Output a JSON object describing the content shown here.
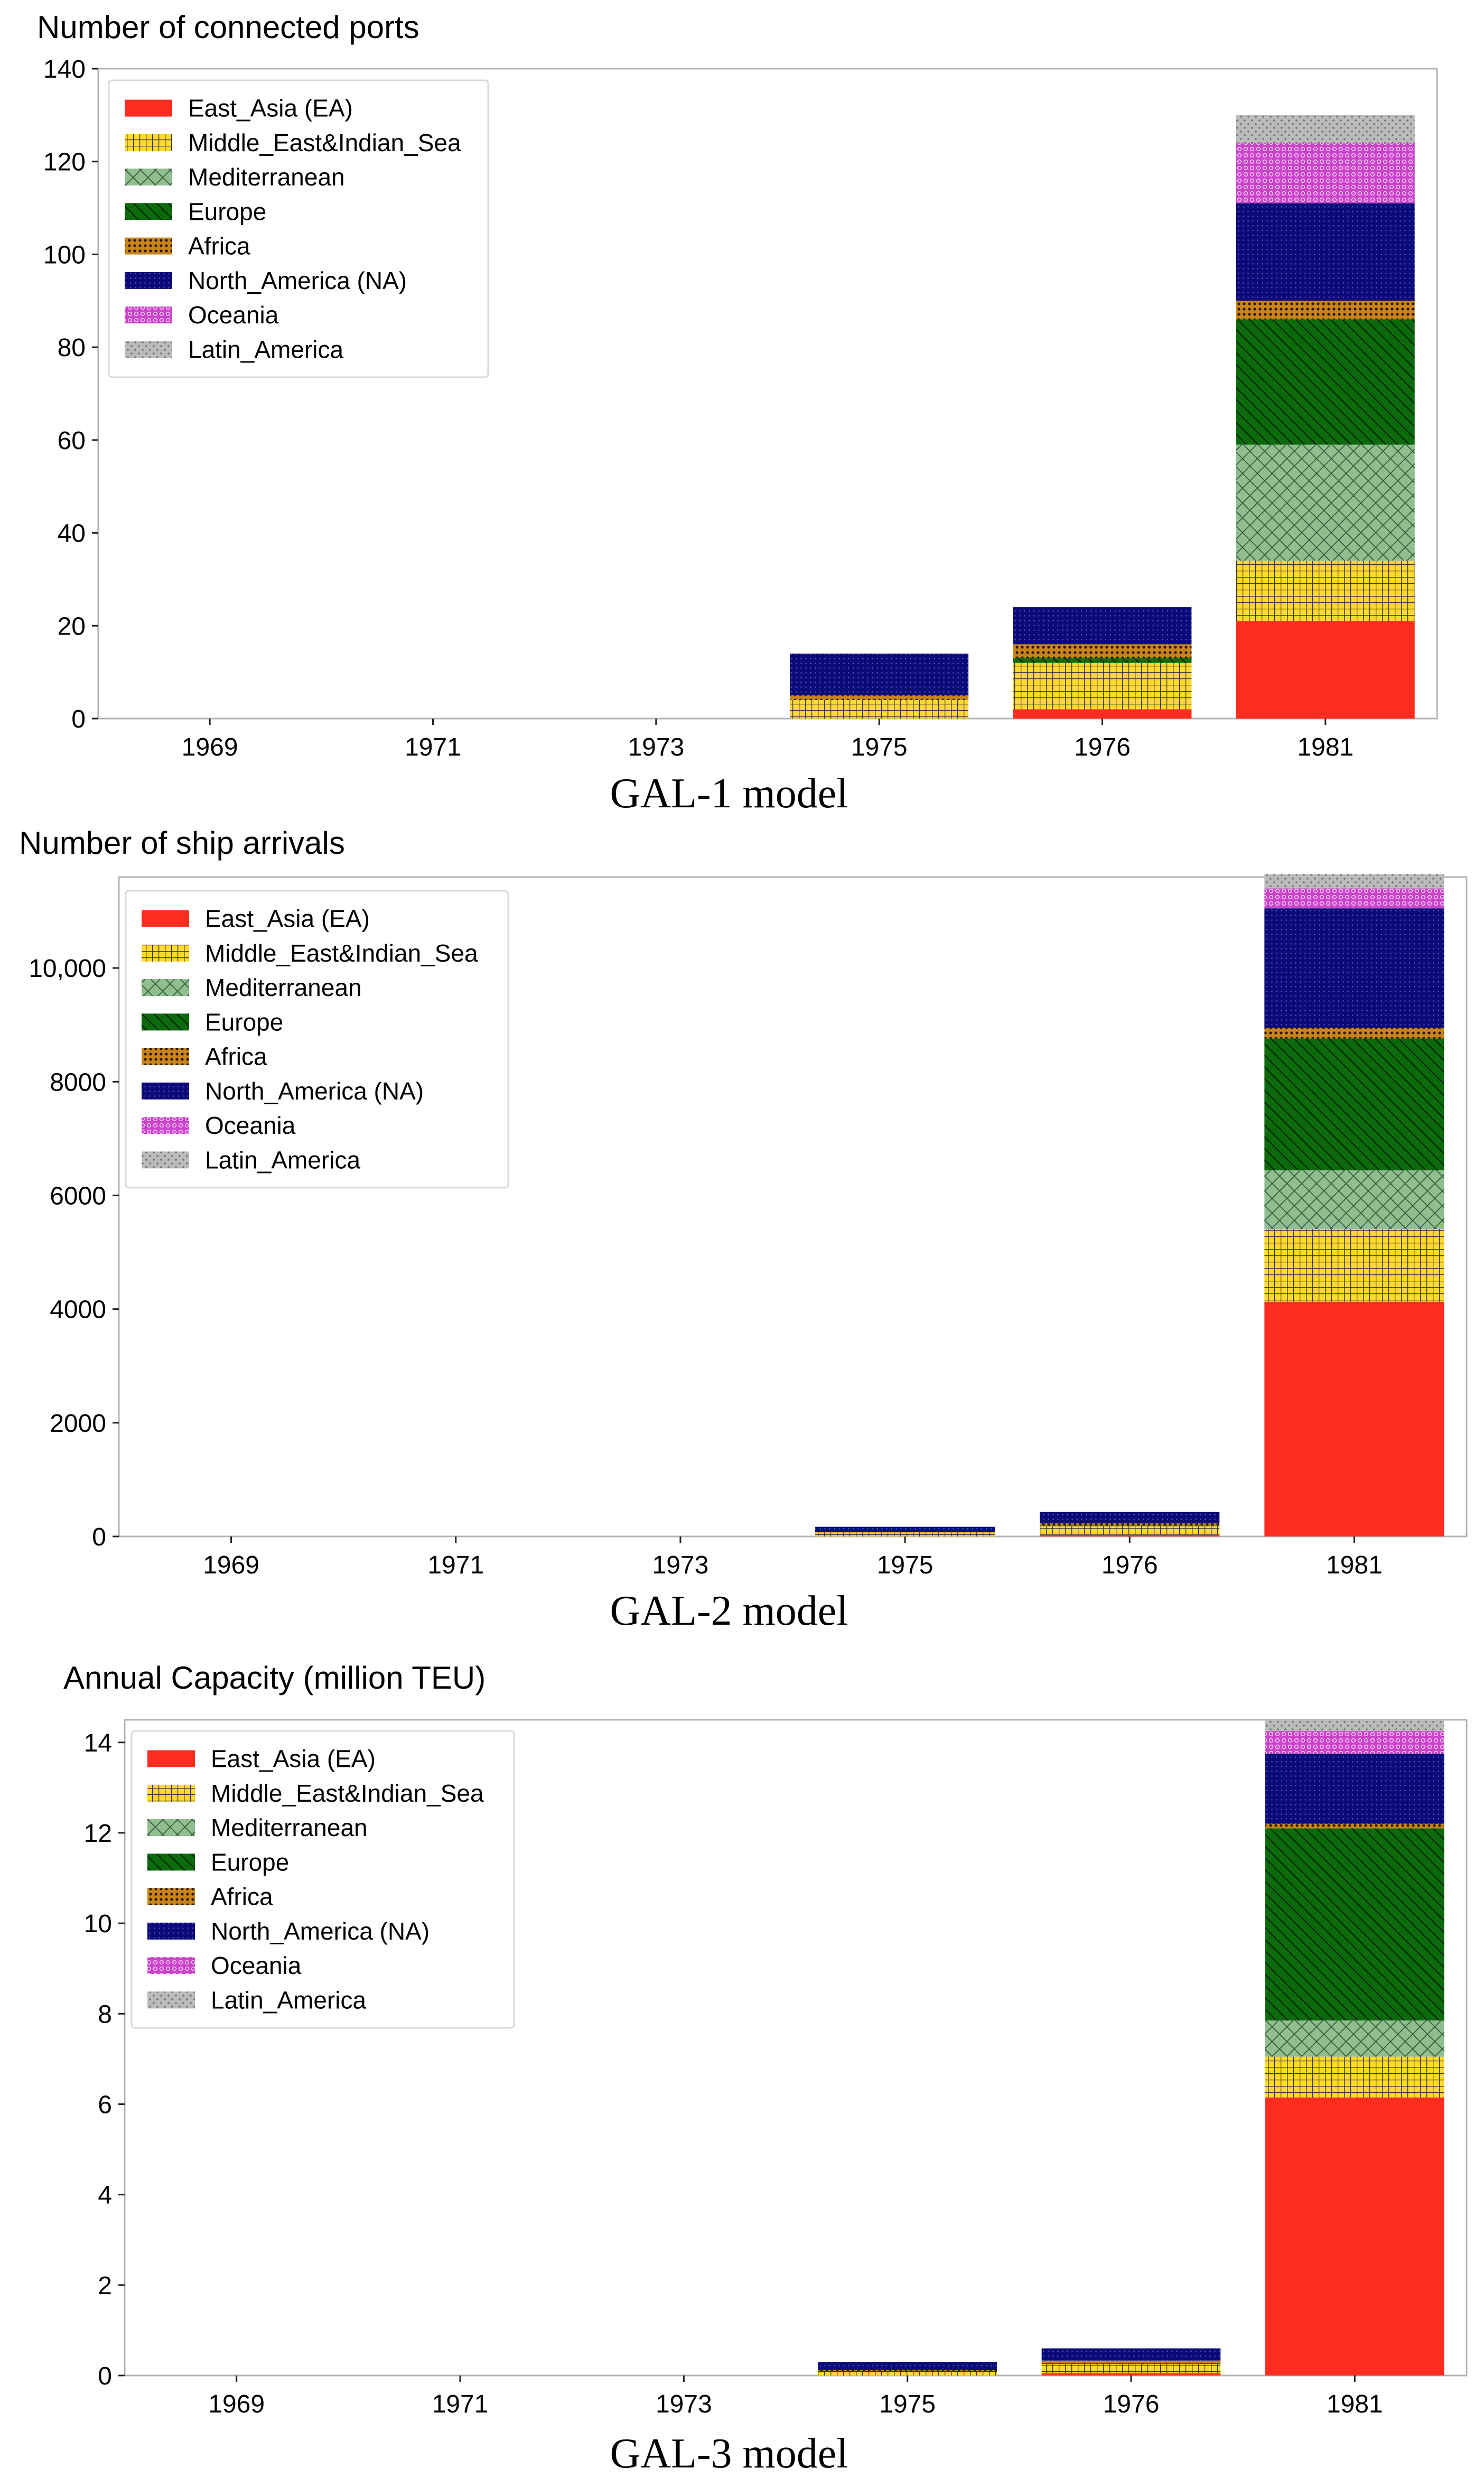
{
  "regions": [
    {
      "key": "east_asia",
      "name": "East_Asia (EA)",
      "color": "#ff2d1f",
      "pattern": "solid"
    },
    {
      "key": "middle_east",
      "name": "Middle_East&Indian_Sea",
      "color": "#ffd92e",
      "pattern": "grid"
    },
    {
      "key": "mediterranean",
      "name": "Mediterranean",
      "color": "#8fbf8f",
      "pattern": "cross"
    },
    {
      "key": "europe",
      "name": "Europe",
      "color": "#0c6a0c",
      "pattern": "diag"
    },
    {
      "key": "africa",
      "name": "Africa",
      "color": "#c88418",
      "pattern": "dots"
    },
    {
      "key": "north_america",
      "name": "North_America (NA)",
      "color": "#0a0a78",
      "pattern": "smalldots"
    },
    {
      "key": "oceania",
      "name": "Oceania",
      "color": "#cc44cc",
      "pattern": "circles"
    },
    {
      "key": "latin_america",
      "name": "Latin_America",
      "color": "#bbbbbb",
      "pattern": "sparse"
    }
  ],
  "chart_data": [
    {
      "type": "bar",
      "stacked": true,
      "title": "Number of connected ports",
      "caption": "GAL-1 model",
      "categories": [
        "1969",
        "1971",
        "1973",
        "1975",
        "1976",
        "1981"
      ],
      "ylim": [
        0,
        140
      ],
      "yticks": [
        0,
        20,
        40,
        60,
        80,
        100,
        120,
        140
      ],
      "ytick_labels": [
        "0",
        "20",
        "40",
        "60",
        "80",
        "100",
        "120",
        "140"
      ],
      "legend_position": "top-left",
      "series": [
        {
          "name": "East_Asia (EA)",
          "values": [
            0,
            0,
            0,
            0,
            2,
            21
          ]
        },
        {
          "name": "Middle_East&Indian_Sea",
          "values": [
            0,
            0,
            0,
            4,
            10,
            13
          ]
        },
        {
          "name": "Mediterranean",
          "values": [
            0,
            0,
            0,
            0,
            0,
            25
          ]
        },
        {
          "name": "Europe",
          "values": [
            0,
            0,
            0,
            0,
            1,
            27
          ]
        },
        {
          "name": "Africa",
          "values": [
            0,
            0,
            0,
            1,
            3,
            4
          ]
        },
        {
          "name": "North_America (NA)",
          "values": [
            0,
            0,
            0,
            9,
            8,
            21
          ]
        },
        {
          "name": "Oceania",
          "values": [
            0,
            0,
            0,
            0,
            0,
            13
          ]
        },
        {
          "name": "Latin_America",
          "values": [
            0,
            0,
            0,
            0,
            0,
            6
          ]
        }
      ]
    },
    {
      "type": "bar",
      "stacked": true,
      "title": "Number of ship arrivals",
      "caption": "GAL-2 model",
      "categories": [
        "1969",
        "1971",
        "1973",
        "1975",
        "1976",
        "1981"
      ],
      "ylim": [
        0,
        11600
      ],
      "yticks": [
        0,
        2000,
        4000,
        6000,
        8000,
        10000
      ],
      "ytick_labels": [
        "0",
        "2000",
        "4000",
        "6000",
        "8000",
        "10,000"
      ],
      "legend_position": "top-left",
      "series": [
        {
          "name": "East_Asia (EA)",
          "values": [
            0,
            0,
            0,
            0,
            30,
            4130
          ]
        },
        {
          "name": "Middle_East&Indian_Sea",
          "values": [
            0,
            0,
            0,
            70,
            150,
            1280
          ]
        },
        {
          "name": "Mediterranean",
          "values": [
            0,
            0,
            0,
            0,
            0,
            1030
          ]
        },
        {
          "name": "Europe",
          "values": [
            0,
            0,
            0,
            0,
            10,
            2320
          ]
        },
        {
          "name": "Africa",
          "values": [
            0,
            0,
            0,
            10,
            40,
            190
          ]
        },
        {
          "name": "North_America (NA)",
          "values": [
            0,
            0,
            0,
            90,
            200,
            2100
          ]
        },
        {
          "name": "Oceania",
          "values": [
            0,
            0,
            0,
            0,
            0,
            350
          ]
        },
        {
          "name": "Latin_America",
          "values": [
            0,
            0,
            0,
            0,
            0,
            250
          ]
        }
      ]
    },
    {
      "type": "bar",
      "stacked": true,
      "title": "Annual Capacity (million TEU)",
      "caption": "GAL-3 model",
      "categories": [
        "1969",
        "1971",
        "1973",
        "1975",
        "1976",
        "1981"
      ],
      "ylim": [
        0,
        14.5
      ],
      "yticks": [
        0,
        2,
        4,
        6,
        8,
        10,
        12,
        14
      ],
      "ytick_labels": [
        "0",
        "2",
        "4",
        "6",
        "8",
        "10",
        "12",
        "14"
      ],
      "legend_position": "top-left",
      "series": [
        {
          "name": "East_Asia (EA)",
          "values": [
            0,
            0,
            0,
            0,
            0.05,
            6.15
          ]
        },
        {
          "name": "Middle_East&Indian_Sea",
          "values": [
            0,
            0,
            0,
            0.1,
            0.2,
            0.9
          ]
        },
        {
          "name": "Mediterranean",
          "values": [
            0,
            0,
            0,
            0,
            0,
            0.8
          ]
        },
        {
          "name": "Europe",
          "values": [
            0,
            0,
            0,
            0,
            0.02,
            4.25
          ]
        },
        {
          "name": "Africa",
          "values": [
            0,
            0,
            0,
            0.02,
            0.06,
            0.1
          ]
        },
        {
          "name": "North_America (NA)",
          "values": [
            0,
            0,
            0,
            0.18,
            0.27,
            1.55
          ]
        },
        {
          "name": "Oceania",
          "values": [
            0,
            0,
            0,
            0,
            0,
            0.5
          ]
        },
        {
          "name": "Latin_America",
          "values": [
            0,
            0,
            0,
            0,
            0,
            0.25
          ]
        }
      ]
    }
  ]
}
